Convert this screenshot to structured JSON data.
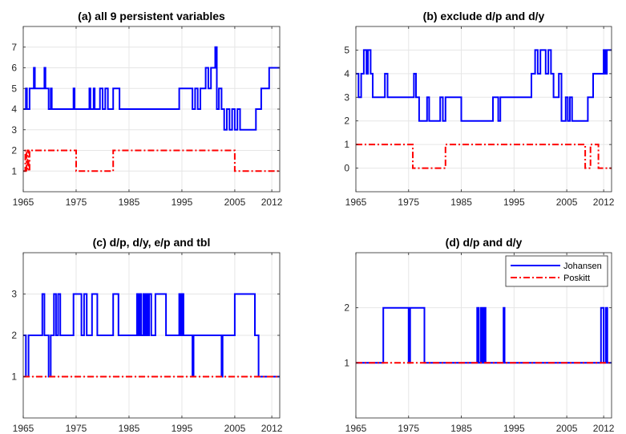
{
  "colors": {
    "johansen": "#0000ff",
    "poskitt": "#ff0000",
    "grid": "#e6e6e6",
    "axis": "#262626"
  },
  "legend": {
    "johansen": "Johansen",
    "poskitt": "Poskitt",
    "position": "top-right of panel (d)"
  },
  "chart_data": [
    {
      "type": "line",
      "title": "(a) all 9 persistent variables",
      "xlabel": "",
      "ylabel": "",
      "xlim": [
        1965,
        2013.5
      ],
      "ylim": [
        0,
        8
      ],
      "xticks": [
        1965,
        1975,
        1985,
        1995,
        2005,
        2012
      ],
      "yticks": [
        1,
        2,
        3,
        4,
        5,
        6,
        7
      ],
      "grid": true,
      "series": [
        {
          "name": "Johansen",
          "style": "solid",
          "points": [
            [
              1965,
              4
            ],
            [
              1965.5,
              5
            ],
            [
              1965.7,
              4
            ],
            [
              1966.2,
              5
            ],
            [
              1967,
              6
            ],
            [
              1967.2,
              5
            ],
            [
              1969,
              6
            ],
            [
              1969.2,
              5
            ],
            [
              1969.8,
              4
            ],
            [
              1970.2,
              5
            ],
            [
              1970.4,
              4
            ],
            [
              1974.5,
              5
            ],
            [
              1974.7,
              4
            ],
            [
              1977.5,
              5
            ],
            [
              1977.7,
              4
            ],
            [
              1978.3,
              5
            ],
            [
              1978.5,
              4
            ],
            [
              1979.5,
              5
            ],
            [
              1980,
              4
            ],
            [
              1980.5,
              5
            ],
            [
              1981,
              4
            ],
            [
              1982,
              5
            ],
            [
              1983.2,
              4
            ],
            [
              1994.5,
              5
            ],
            [
              1997,
              4
            ],
            [
              1997.5,
              5
            ],
            [
              1998,
              4
            ],
            [
              1998.5,
              5
            ],
            [
              1999.5,
              6
            ],
            [
              2000,
              5
            ],
            [
              2000.5,
              6
            ],
            [
              2001.3,
              7
            ],
            [
              2001.6,
              4
            ],
            [
              2002,
              5
            ],
            [
              2002.5,
              4
            ],
            [
              2003,
              3
            ],
            [
              2003.5,
              4
            ],
            [
              2004,
              3
            ],
            [
              2004.5,
              4
            ],
            [
              2005,
              3
            ],
            [
              2005.5,
              4
            ],
            [
              2006,
              3
            ],
            [
              2009,
              4
            ],
            [
              2010,
              5
            ],
            [
              2011.5,
              6
            ],
            [
              2013.5,
              6
            ]
          ]
        },
        {
          "name": "Poskitt",
          "style": "dashdot",
          "points": [
            [
              1965,
              1
            ],
            [
              1965.4,
              2
            ],
            [
              1965.6,
              1
            ],
            [
              1965.8,
              2
            ],
            [
              1966,
              1
            ],
            [
              1966.2,
              2
            ],
            [
              1975,
              1
            ],
            [
              1982,
              2
            ],
            [
              2005,
              1
            ],
            [
              2013.5,
              1
            ]
          ]
        }
      ]
    },
    {
      "type": "line",
      "title": "(b) exclude d/p and d/y",
      "xlabel": "",
      "ylabel": "",
      "xlim": [
        1965,
        2013.5
      ],
      "ylim": [
        -1,
        6
      ],
      "xticks": [
        1965,
        1975,
        1985,
        1995,
        2005,
        2012
      ],
      "yticks": [
        0,
        1,
        2,
        3,
        4,
        5
      ],
      "grid": true,
      "series": [
        {
          "name": "Johansen",
          "style": "solid",
          "points": [
            [
              1965,
              4
            ],
            [
              1965.5,
              3
            ],
            [
              1966,
              4
            ],
            [
              1966.5,
              5
            ],
            [
              1967,
              4
            ],
            [
              1967.3,
              5
            ],
            [
              1967.8,
              4
            ],
            [
              1968.2,
              3
            ],
            [
              1970.5,
              4
            ],
            [
              1971,
              3
            ],
            [
              1976,
              4
            ],
            [
              1976.4,
              3
            ],
            [
              1977,
              2
            ],
            [
              1978.5,
              3
            ],
            [
              1978.9,
              2
            ],
            [
              1981,
              3
            ],
            [
              1981.5,
              2
            ],
            [
              1982,
              3
            ],
            [
              1985,
              2
            ],
            [
              1991,
              3
            ],
            [
              1992,
              2
            ],
            [
              1992.4,
              3
            ],
            [
              1998.3,
              4
            ],
            [
              1999,
              5
            ],
            [
              1999.5,
              4
            ],
            [
              2000,
              5
            ],
            [
              2001,
              4
            ],
            [
              2001.5,
              5
            ],
            [
              2002,
              4
            ],
            [
              2002.5,
              3
            ],
            [
              2003.5,
              4
            ],
            [
              2004,
              2
            ],
            [
              2004.8,
              3
            ],
            [
              2005.2,
              2
            ],
            [
              2005.6,
              3
            ],
            [
              2006,
              2
            ],
            [
              2009,
              3
            ],
            [
              2010,
              4
            ],
            [
              2012,
              5
            ],
            [
              2012.3,
              4
            ],
            [
              2012.6,
              5
            ],
            [
              2013.5,
              5
            ]
          ]
        },
        {
          "name": "Poskitt",
          "style": "dashdot",
          "points": [
            [
              1965,
              1
            ],
            [
              1975.8,
              0
            ],
            [
              1982,
              1
            ],
            [
              2008.5,
              0
            ],
            [
              2009.5,
              1
            ],
            [
              2011,
              0
            ],
            [
              2013.5,
              0
            ]
          ]
        }
      ]
    },
    {
      "type": "line",
      "title": "(c) d/p, d/y, e/p and tbl",
      "xlabel": "",
      "ylabel": "",
      "xlim": [
        1965,
        2013.5
      ],
      "ylim": [
        0,
        4
      ],
      "xticks": [
        1965,
        1975,
        1985,
        1995,
        2005,
        2012
      ],
      "yticks": [
        1,
        2,
        3
      ],
      "grid": true,
      "series": [
        {
          "name": "Johansen",
          "style": "solid",
          "points": [
            [
              1965,
              2
            ],
            [
              1965.5,
              1
            ],
            [
              1966,
              2
            ],
            [
              1968.6,
              3
            ],
            [
              1969,
              2
            ],
            [
              1969.8,
              1
            ],
            [
              1970.2,
              2
            ],
            [
              1970.8,
              3
            ],
            [
              1971.2,
              2
            ],
            [
              1971.6,
              3
            ],
            [
              1972,
              2
            ],
            [
              1974.5,
              3
            ],
            [
              1976,
              2
            ],
            [
              1976.5,
              3
            ],
            [
              1977,
              2
            ],
            [
              1978,
              3
            ],
            [
              1979,
              2
            ],
            [
              1982,
              3
            ],
            [
              1983,
              2
            ],
            [
              1986.5,
              3
            ],
            [
              1986.8,
              2
            ],
            [
              1987,
              3
            ],
            [
              1987.3,
              2
            ],
            [
              1987.7,
              3
            ],
            [
              1988,
              2
            ],
            [
              1988.2,
              3
            ],
            [
              1988.5,
              2
            ],
            [
              1988.8,
              3
            ],
            [
              1989.2,
              2
            ],
            [
              1990,
              3
            ],
            [
              1992,
              2
            ],
            [
              1994.5,
              3
            ],
            [
              1994.8,
              2
            ],
            [
              1995,
              3
            ],
            [
              1995.3,
              2
            ],
            [
              1997,
              1
            ],
            [
              1997.2,
              2
            ],
            [
              2002.5,
              1
            ],
            [
              2002.7,
              2
            ],
            [
              2005,
              3
            ],
            [
              2008.8,
              2
            ],
            [
              2009.5,
              1
            ],
            [
              2013.5,
              1
            ]
          ]
        },
        {
          "name": "Poskitt",
          "style": "dashdot",
          "points": [
            [
              1965,
              1
            ],
            [
              2013.5,
              1
            ]
          ]
        }
      ]
    },
    {
      "type": "line",
      "title": "(d) d/p and d/y",
      "xlabel": "",
      "ylabel": "",
      "xlim": [
        1965,
        2013.5
      ],
      "ylim": [
        0,
        3
      ],
      "xticks": [
        1965,
        1975,
        1985,
        1995,
        2005,
        2012
      ],
      "yticks": [
        1,
        2
      ],
      "grid": true,
      "legend": "top-right",
      "series": [
        {
          "name": "Johansen",
          "style": "solid",
          "points": [
            [
              1965,
              1
            ],
            [
              1970.2,
              2
            ],
            [
              1975,
              1
            ],
            [
              1975.3,
              2
            ],
            [
              1978,
              1
            ],
            [
              1988,
              2
            ],
            [
              1988.3,
              1
            ],
            [
              1988.7,
              2
            ],
            [
              1989,
              1
            ],
            [
              1989.3,
              2
            ],
            [
              1989.6,
              1
            ],
            [
              1993,
              2
            ],
            [
              1993.2,
              1
            ],
            [
              2011.5,
              2
            ],
            [
              2012,
              1
            ],
            [
              2012.4,
              2
            ],
            [
              2012.7,
              1
            ],
            [
              2013.5,
              1
            ]
          ]
        },
        {
          "name": "Poskitt",
          "style": "dashdot",
          "points": [
            [
              1965,
              1
            ],
            [
              2013.5,
              1
            ]
          ]
        }
      ]
    }
  ]
}
